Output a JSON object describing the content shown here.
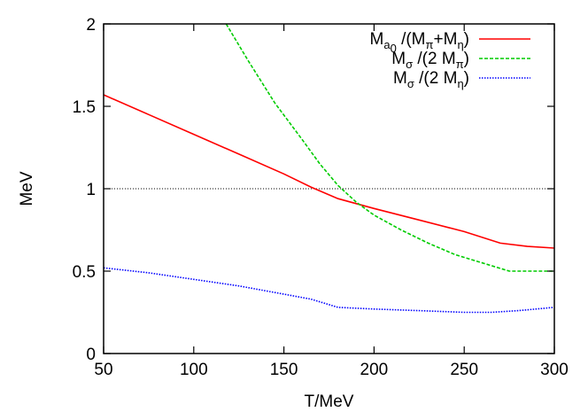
{
  "chart_data": {
    "type": "line",
    "xlabel": "T/MeV",
    "ylabel": "MeV",
    "xlim": [
      50,
      300
    ],
    "ylim": [
      0,
      2
    ],
    "xticks": [
      "50",
      "100",
      "150",
      "200",
      "250",
      "300"
    ],
    "yticks": [
      "0",
      "0.5",
      "1",
      "1.5",
      "2"
    ],
    "x_tick_values": [
      50,
      100,
      150,
      200,
      250,
      300
    ],
    "y_tick_values": [
      0,
      0.5,
      1,
      1.5,
      2
    ],
    "reference_line": {
      "y": 1,
      "style": "dotted",
      "color": "#000000"
    },
    "legend_position": "top-right",
    "series": [
      {
        "name": "M_a0 /(M_π+M_η)",
        "color": "#ff0000",
        "style": "solid",
        "x": [
          50,
          75,
          100,
          125,
          150,
          165,
          180,
          200,
          225,
          250,
          270,
          285,
          300
        ],
        "y": [
          1.57,
          1.45,
          1.33,
          1.21,
          1.09,
          1.01,
          0.94,
          0.88,
          0.81,
          0.74,
          0.67,
          0.65,
          0.64
        ]
      },
      {
        "name": "M_σ /(2 M_π)",
        "color": "#00cc00",
        "style": "dashed",
        "x": [
          118,
          130,
          145,
          160,
          170,
          180,
          190,
          200,
          215,
          230,
          245,
          260,
          275,
          290,
          300
        ],
        "y": [
          2.0,
          1.78,
          1.52,
          1.3,
          1.15,
          1.02,
          0.92,
          0.84,
          0.75,
          0.67,
          0.6,
          0.55,
          0.5,
          0.5,
          0.5
        ]
      },
      {
        "name": "M_σ /(2 M_η)",
        "color": "#0000ff",
        "style": "dotted",
        "x": [
          50,
          75,
          100,
          125,
          150,
          165,
          180,
          200,
          225,
          250,
          265,
          280,
          300
        ],
        "y": [
          0.52,
          0.49,
          0.45,
          0.41,
          0.36,
          0.33,
          0.28,
          0.27,
          0.26,
          0.25,
          0.25,
          0.26,
          0.28
        ]
      }
    ],
    "legend": [
      {
        "main": "M",
        "sub": "a",
        "subsub": "0",
        "rest": " /(M",
        "sub2": "π",
        "rest2": "+M",
        "sub3": "η",
        "rest3": ")"
      },
      {
        "main": "M",
        "sub": "σ",
        "rest": " /(2 M",
        "sub2": "π",
        "rest2": ")"
      },
      {
        "main": "M",
        "sub": "σ",
        "rest": " /(2 M",
        "sub2": "η",
        "rest2": ")"
      }
    ]
  }
}
